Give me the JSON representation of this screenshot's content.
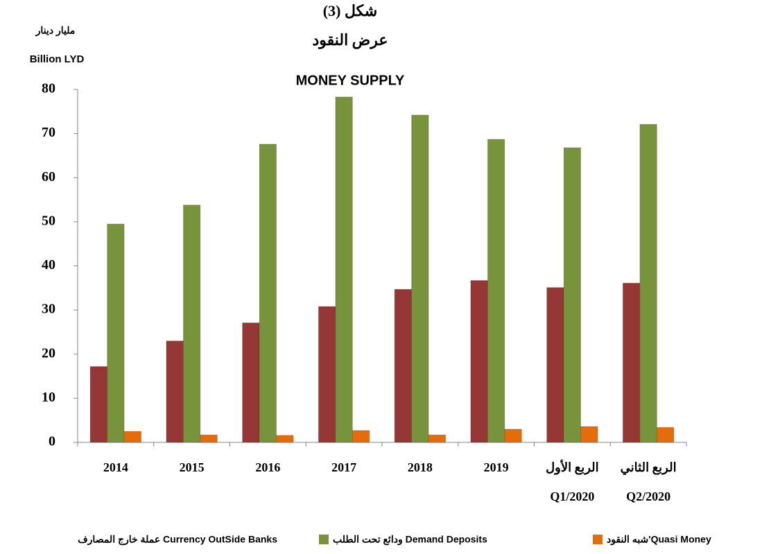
{
  "chart_data": {
    "type": "bar",
    "title": "شكل (3)",
    "subtitle": "عرض النقود",
    "title_en": "MONEY SUPPLY",
    "y_label": "مليار دينار",
    "y_label_en": "Billion LYD",
    "categories": [
      [
        "2014"
      ],
      [
        "2015"
      ],
      [
        "2016"
      ],
      [
        "2017"
      ],
      [
        "2018"
      ],
      [
        "2019"
      ],
      [
        "الربع الأول",
        "Q1/2020"
      ],
      [
        "الربع الثاني",
        "Q2/2020"
      ]
    ],
    "series": [
      {
        "name": "عملة خارج المصارف Currency OutSide Banks",
        "color": "#953735",
        "values": [
          17.2,
          23.0,
          27.1,
          30.8,
          34.7,
          36.7,
          35.1,
          36.1
        ]
      },
      {
        "name": "ودائع تحت الطلب Demand Deposits",
        "color": "#77933c",
        "values": [
          49.5,
          53.8,
          67.6,
          78.3,
          74.2,
          68.7,
          66.8,
          72.1
        ]
      },
      {
        "name": "شبه النقود'Quasi Money",
        "color": "#e46c0a",
        "values": [
          2.5,
          1.7,
          1.6,
          2.7,
          1.7,
          3.0,
          3.6,
          3.4
        ]
      }
    ],
    "ylim": [
      0,
      80
    ],
    "yticks": [
      0,
      10,
      20,
      30,
      40,
      50,
      60,
      70,
      80
    ],
    "grid": false
  }
}
